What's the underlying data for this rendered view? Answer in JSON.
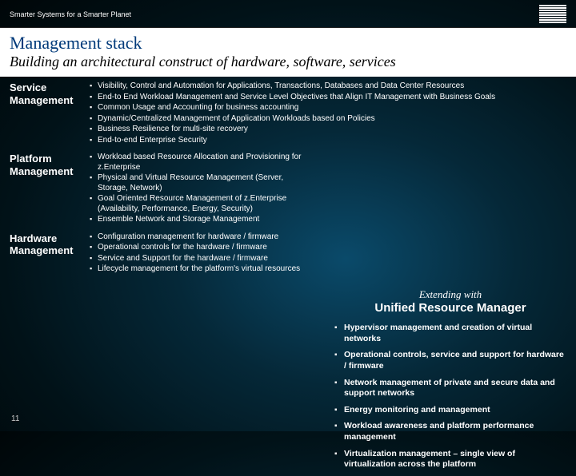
{
  "header": {
    "tagline": "Smarter Systems for a Smarter Planet",
    "logo_alt": "IBM"
  },
  "title": {
    "line1": "Management stack",
    "line2": "Building an architectural construct of hardware, software, services"
  },
  "sections": {
    "service": {
      "label": "Service Management",
      "bullets": [
        "Visibility, Control and Automation for Applications, Transactions,  Databases and Data Center Resources",
        "End-to End Workload Management and Service Level Objectives that Align IT Management with Business Goals",
        "Common Usage and Accounting for business accounting",
        "Dynamic/Centralized Management of Application Workloads based on Policies",
        "Business Resilience for multi-site recovery",
        "End-to-end Enterprise Security"
      ]
    },
    "platform": {
      "label": "Platform Management",
      "bullets": [
        "Workload based Resource Allocation and Provisioning for z.Enterprise",
        "Physical and Virtual Resource Management (Server, Storage, Network)",
        "Goal Oriented Resource Management of z.Enterprise (Availability, Performance, Energy, Security)",
        "Ensemble Network and Storage Management"
      ]
    },
    "hardware": {
      "label": "Hardware Management",
      "bullets": [
        "Configuration management for hardware / firmware",
        "Operational controls for the hardware / firmware",
        "Service and Support for the hardware / firmware",
        "Lifecycle management for the platform's virtual resources"
      ]
    }
  },
  "extending": {
    "title": "Extending with",
    "subtitle": "Unified Resource Manager",
    "bullets": [
      "Hypervisor management and creation of virtual networks",
      "Operational controls, service and support for hardware / firmware",
      "Network management of private and secure data and support networks",
      "Energy monitoring and management",
      "Workload awareness and platform performance management",
      "Virtualization management – single view of virtualization across the platform"
    ]
  },
  "page_number": "11",
  "colors": {
    "title_accent": "#003a7a",
    "background_center": "#0a4a6a",
    "background_outer": "#000608"
  }
}
